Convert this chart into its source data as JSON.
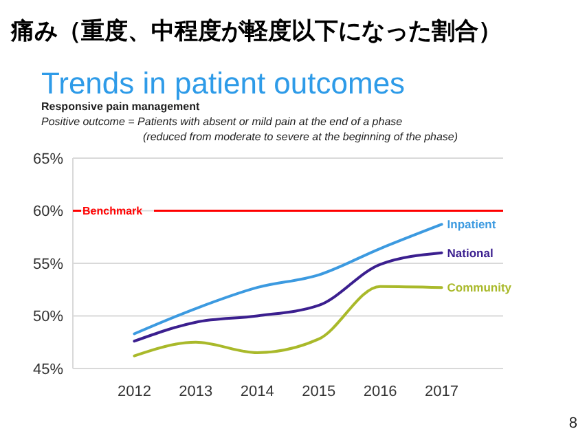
{
  "chart_data": {
    "type": "line",
    "title": "痛み（重度、中程度が軽度以下になった割合）",
    "subtitle": "Trends in patient outcomes",
    "annotations": [
      "Responsive pain management",
      "Positive outcome = Patients with absent or mild pain at the end of a phase",
      "(reduced from moderate to severe at the beginning of the phase)",
      "8"
    ],
    "categories": [
      "2012",
      "2013",
      "2014",
      "2015",
      "2016",
      "2017"
    ],
    "series": [
      {
        "name": "Inpatient",
        "color": "#3c9ae0",
        "values": [
          48.3,
          50.7,
          52.7,
          53.9,
          56.4,
          58.7
        ]
      },
      {
        "name": "National",
        "color": "#3b1f8f",
        "values": [
          47.6,
          49.4,
          50.0,
          51.0,
          54.9,
          56.0
        ]
      },
      {
        "name": "Community",
        "color": "#a9b92a",
        "values": [
          46.2,
          47.5,
          46.5,
          47.8,
          52.8,
          52.7
        ]
      }
    ],
    "ylim": [
      45,
      65
    ],
    "yticks": [
      {
        "value": 45,
        "label": "45%"
      },
      {
        "value": 50,
        "label": "50%"
      },
      {
        "value": 55,
        "label": "55%"
      },
      {
        "value": 60,
        "label": "60%"
      },
      {
        "value": 65,
        "label": "65%"
      }
    ],
    "grid": "y",
    "ref_lines": [
      {
        "axis": "y",
        "value": 60,
        "label": "Benchmark",
        "color": "#ff0000"
      }
    ]
  }
}
